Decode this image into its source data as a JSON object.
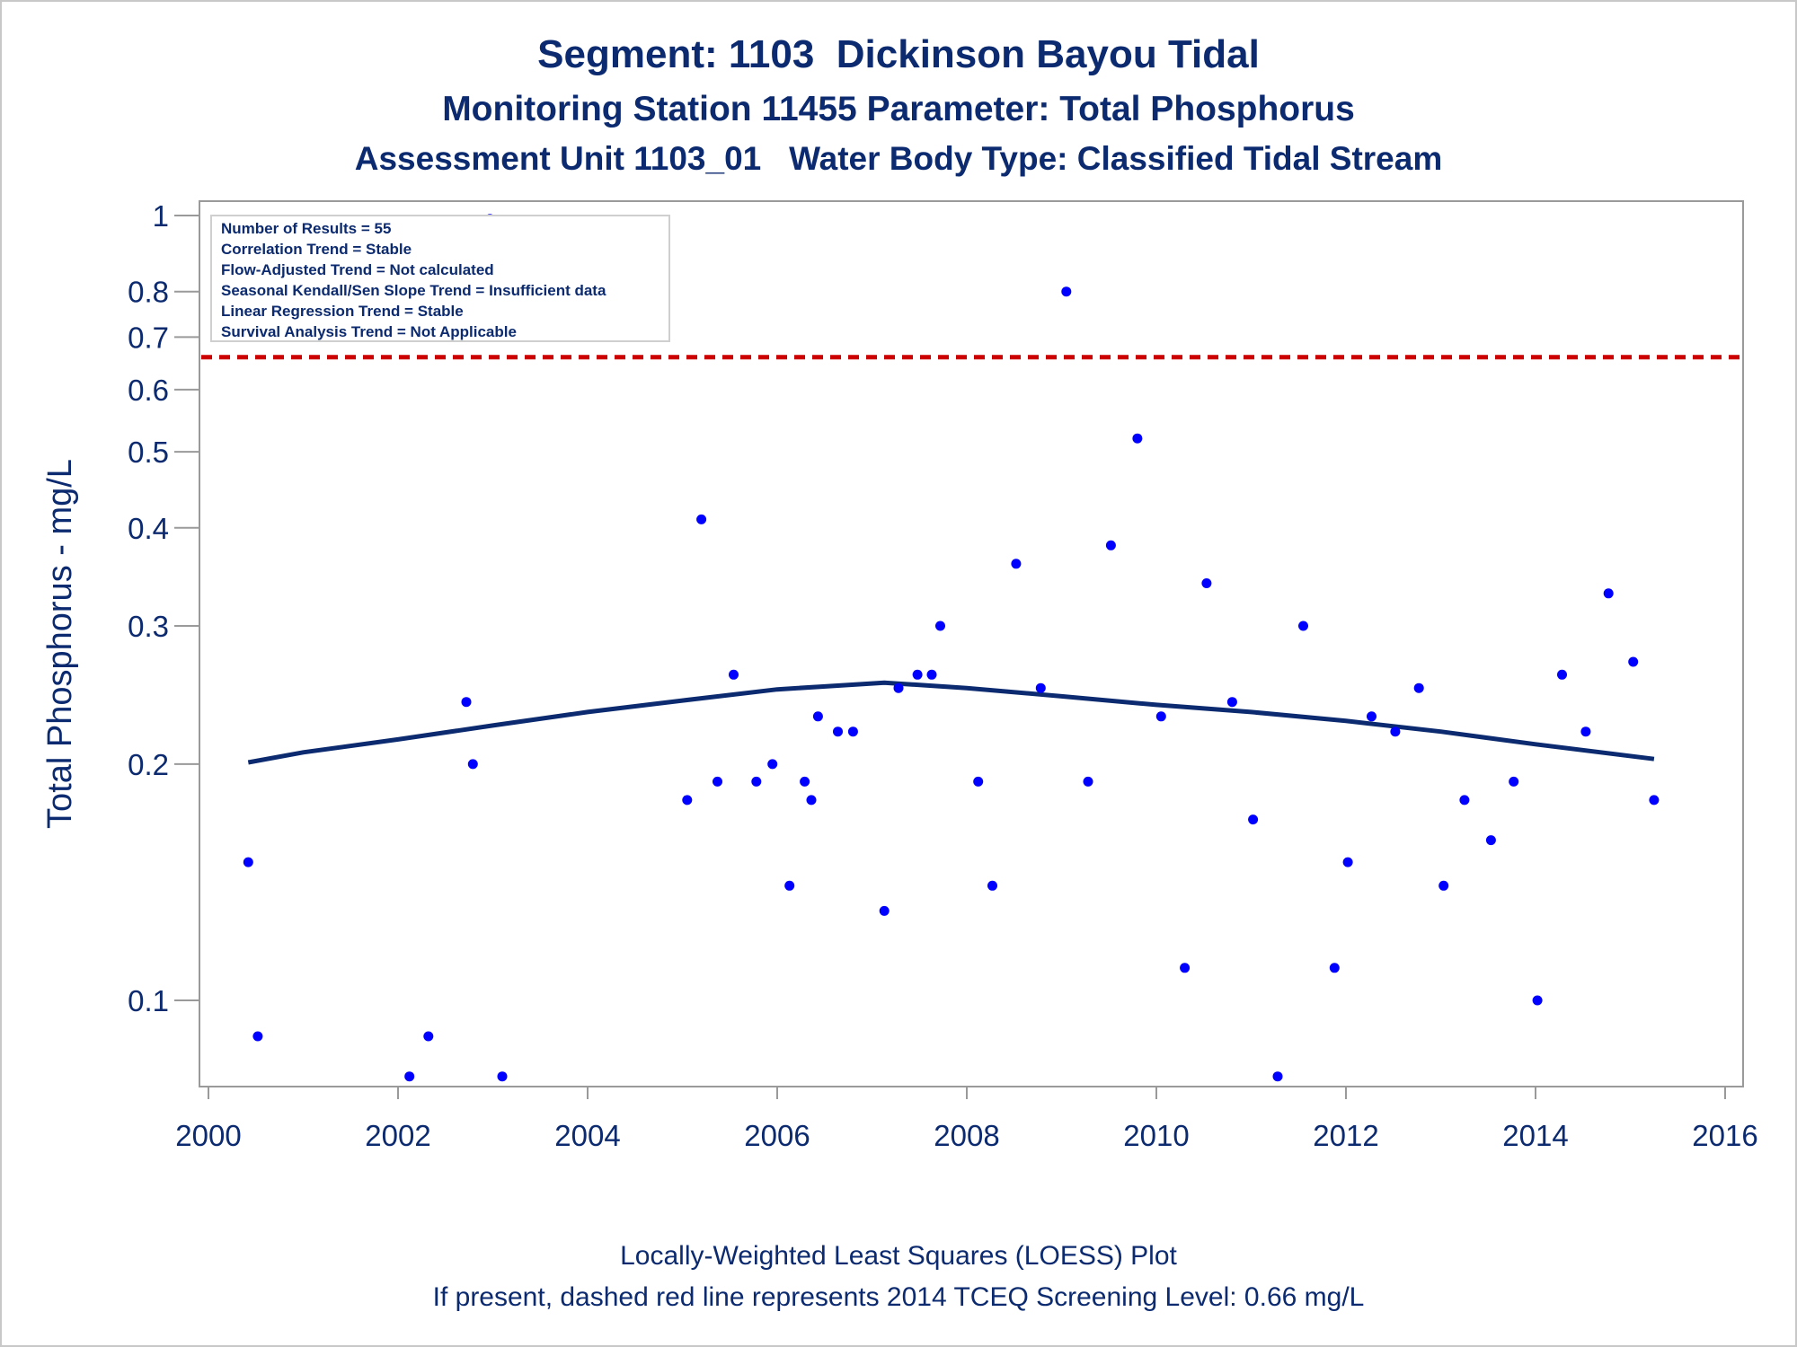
{
  "header": {
    "title": "Segment: 1103  Dickinson Bayou Tidal",
    "subtitle": "Monitoring Station 11455 Parameter: Total Phosphorus",
    "subtitle2": "Assessment Unit 1103_01   Water Body Type: Classified Tidal Stream"
  },
  "footer": {
    "line1": "Locally-Weighted Least Squares (LOESS) Plot",
    "line2": "If present, dashed red line represents 2014 TCEQ Screening Level: 0.66 mg/L"
  },
  "stats_box": [
    "Number of Results = 55",
    "Correlation Trend = Stable",
    "Flow-Adjusted Trend = Not calculated",
    "Seasonal Kendall/Sen Slope Trend = Insufficient data",
    "Linear Regression Trend = Stable",
    "Survival Analysis Trend = Not Applicable"
  ],
  "colors": {
    "text": "#0b2a6f",
    "points": "#0000ff",
    "loess": "#0b2a6f",
    "screening_line": "#cc0000",
    "axis": "#9a9a9a"
  },
  "chart_data": {
    "type": "scatter",
    "ylabel": "Total Phosphorus - mg/L",
    "xlabel": "",
    "y_scale": "log",
    "xlim": [
      2000,
      2016
    ],
    "ylim": [
      0.07,
      1.0
    ],
    "x_ticks": [
      2000,
      2002,
      2004,
      2006,
      2008,
      2010,
      2012,
      2014,
      2016
    ],
    "y_ticks": [
      0.1,
      0.2,
      0.3,
      0.4,
      0.5,
      0.6,
      0.7,
      0.8,
      1
    ],
    "screening_level": 0.66,
    "points": [
      [
        2000.42,
        0.15
      ],
      [
        2000.52,
        0.09
      ],
      [
        2002.12,
        0.08
      ],
      [
        2002.32,
        0.09
      ],
      [
        2002.72,
        0.24
      ],
      [
        2002.79,
        0.2
      ],
      [
        2002.97,
        0.99
      ],
      [
        2003.1,
        0.08
      ],
      [
        2005.05,
        0.18
      ],
      [
        2005.2,
        0.41
      ],
      [
        2005.37,
        0.19
      ],
      [
        2005.54,
        0.26
      ],
      [
        2005.78,
        0.19
      ],
      [
        2005.95,
        0.2
      ],
      [
        2006.13,
        0.14
      ],
      [
        2006.29,
        0.19
      ],
      [
        2006.36,
        0.18
      ],
      [
        2006.43,
        0.23
      ],
      [
        2006.64,
        0.22
      ],
      [
        2006.8,
        0.22
      ],
      [
        2007.13,
        0.13
      ],
      [
        2007.28,
        0.25
      ],
      [
        2007.48,
        0.26
      ],
      [
        2007.63,
        0.26
      ],
      [
        2007.72,
        0.3
      ],
      [
        2008.12,
        0.19
      ],
      [
        2008.27,
        0.14
      ],
      [
        2008.52,
        0.36
      ],
      [
        2008.78,
        0.25
      ],
      [
        2009.05,
        0.8
      ],
      [
        2009.28,
        0.19
      ],
      [
        2009.52,
        0.38
      ],
      [
        2009.8,
        0.52
      ],
      [
        2010.05,
        0.23
      ],
      [
        2010.3,
        0.11
      ],
      [
        2010.53,
        0.34
      ],
      [
        2010.8,
        0.24
      ],
      [
        2011.02,
        0.17
      ],
      [
        2011.28,
        0.08
      ],
      [
        2011.55,
        0.3
      ],
      [
        2011.88,
        0.11
      ],
      [
        2012.02,
        0.15
      ],
      [
        2012.27,
        0.23
      ],
      [
        2012.52,
        0.22
      ],
      [
        2012.77,
        0.25
      ],
      [
        2013.03,
        0.14
      ],
      [
        2013.25,
        0.18
      ],
      [
        2013.53,
        0.16
      ],
      [
        2013.77,
        0.19
      ],
      [
        2014.02,
        0.1
      ],
      [
        2014.28,
        0.26
      ],
      [
        2014.53,
        0.22
      ],
      [
        2014.77,
        0.33
      ],
      [
        2015.03,
        0.27
      ],
      [
        2015.25,
        0.18
      ]
    ],
    "loess_curve": [
      [
        2000.42,
        0.201
      ],
      [
        2001.0,
        0.207
      ],
      [
        2002.0,
        0.215
      ],
      [
        2003.0,
        0.224
      ],
      [
        2004.0,
        0.233
      ],
      [
        2005.0,
        0.241
      ],
      [
        2006.0,
        0.249
      ],
      [
        2007.13,
        0.254
      ],
      [
        2008.0,
        0.25
      ],
      [
        2009.0,
        0.244
      ],
      [
        2010.0,
        0.238
      ],
      [
        2011.0,
        0.233
      ],
      [
        2012.0,
        0.227
      ],
      [
        2013.0,
        0.22
      ],
      [
        2014.0,
        0.212
      ],
      [
        2015.25,
        0.203
      ]
    ]
  }
}
